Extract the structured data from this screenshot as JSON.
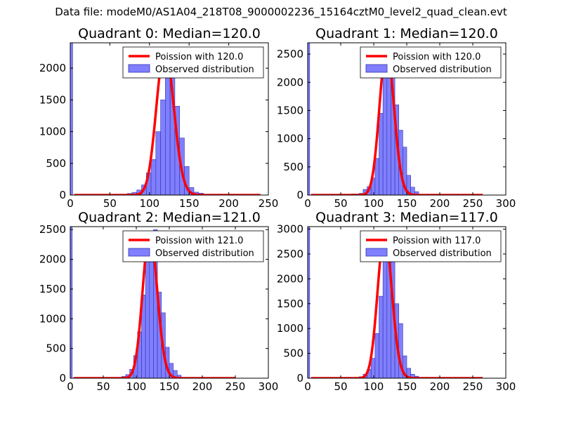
{
  "figure": {
    "suptitle": "Data file: modeM0/AS1A04_218T08_9000002236_15164cztM0_level2_quad_clean.evt"
  },
  "colors": {
    "fit_line": "#ff0000",
    "bar_fill": "#7f7fff",
    "bar_edge": "#3333aa",
    "axes": "#000000",
    "legend_edge": "#000000"
  },
  "chart_data": [
    {
      "type": "bar",
      "title": "Quadrant 0: Median=120.0",
      "xlim": [
        0,
        250
      ],
      "ylim": [
        0,
        2400
      ],
      "xticks": [
        0,
        50,
        100,
        150,
        200,
        250
      ],
      "yticks": [
        0,
        500,
        1000,
        1500,
        2000
      ],
      "bin_width": 6,
      "zero_bin": {
        "x": 0,
        "width": 3,
        "value": 2400
      },
      "bins_x": [
        66,
        72,
        78,
        84,
        90,
        96,
        102,
        108,
        114,
        120,
        126,
        132,
        138,
        144,
        150,
        156,
        162,
        168,
        174,
        180,
        186
      ],
      "bins_y": [
        10,
        25,
        40,
        80,
        160,
        350,
        560,
        1000,
        1500,
        1980,
        2150,
        1400,
        900,
        450,
        120,
        45,
        30,
        5,
        5,
        0,
        0
      ],
      "fit": {
        "label": "Poission with 120.0",
        "mu": 120,
        "peak": 2300,
        "x_range": [
          5,
          240
        ]
      },
      "legend": [
        "Poission with 120.0",
        "Observed distribution"
      ]
    },
    {
      "type": "bar",
      "title": "Quadrant 1: Median=120.0",
      "xlim": [
        0,
        300
      ],
      "ylim": [
        0,
        2700
      ],
      "xticks": [
        0,
        50,
        100,
        150,
        200,
        250,
        300
      ],
      "yticks": [
        0,
        500,
        1000,
        1500,
        2000,
        2500
      ],
      "bin_width": 6,
      "zero_bin": {
        "x": 0,
        "width": 3,
        "value": 2700
      },
      "bins_x": [
        66,
        72,
        78,
        84,
        90,
        96,
        102,
        108,
        114,
        120,
        126,
        132,
        138,
        144,
        150,
        156,
        162,
        168,
        174,
        180
      ],
      "bins_y": [
        20,
        20,
        30,
        100,
        150,
        300,
        650,
        1450,
        2200,
        2600,
        2500,
        1600,
        1150,
        850,
        350,
        140,
        60,
        10,
        5,
        0
      ],
      "fit": {
        "label": "Poission with 120.0",
        "mu": 120,
        "peak": 2600,
        "x_range": [
          5,
          265
        ]
      },
      "legend": [
        "Poission with 120.0",
        "Observed distribution"
      ]
    },
    {
      "type": "bar",
      "title": "Quadrant 2: Median=121.0",
      "xlim": [
        0,
        300
      ],
      "ylim": [
        0,
        2550
      ],
      "xticks": [
        0,
        50,
        100,
        150,
        200,
        250,
        300
      ],
      "yticks": [
        0,
        500,
        1000,
        1500,
        2000,
        2500
      ],
      "bin_width": 6,
      "zero_bin": {
        "x": 0,
        "width": 3,
        "value": 2550
      },
      "bins_x": [
        66,
        72,
        78,
        84,
        90,
        96,
        102,
        108,
        114,
        120,
        126,
        132,
        138,
        144,
        150,
        156,
        162,
        168,
        174,
        180
      ],
      "bins_y": [
        10,
        15,
        30,
        60,
        150,
        380,
        780,
        1400,
        2100,
        2450,
        2500,
        1450,
        1100,
        520,
        250,
        130,
        50,
        10,
        5,
        0
      ],
      "fit": {
        "label": "Poission with 121.0",
        "mu": 121,
        "peak": 2450,
        "x_range": [
          5,
          250
        ]
      },
      "legend": [
        "Poission with 121.0",
        "Observed distribution"
      ]
    },
    {
      "type": "bar",
      "title": "Quadrant 3: Median=117.0",
      "xlim": [
        0,
        300
      ],
      "ylim": [
        0,
        3050
      ],
      "xticks": [
        0,
        50,
        100,
        150,
        200,
        250,
        300
      ],
      "yticks": [
        0,
        500,
        1000,
        1500,
        2000,
        2500,
        3000
      ],
      "bin_width": 6,
      "zero_bin": {
        "x": 0,
        "width": 3,
        "value": 3050
      },
      "bins_x": [
        66,
        72,
        78,
        84,
        90,
        96,
        102,
        108,
        114,
        120,
        126,
        132,
        138,
        144,
        150,
        156,
        162,
        168,
        174,
        180
      ],
      "bins_y": [
        10,
        15,
        30,
        80,
        180,
        400,
        900,
        1650,
        2500,
        2900,
        2400,
        1500,
        1100,
        450,
        200,
        80,
        40,
        10,
        5,
        0
      ],
      "fit": {
        "label": "Poission with 117.0",
        "mu": 117,
        "peak": 2900,
        "x_range": [
          5,
          265
        ]
      },
      "legend": [
        "Poission with 117.0",
        "Observed distribution"
      ]
    }
  ]
}
